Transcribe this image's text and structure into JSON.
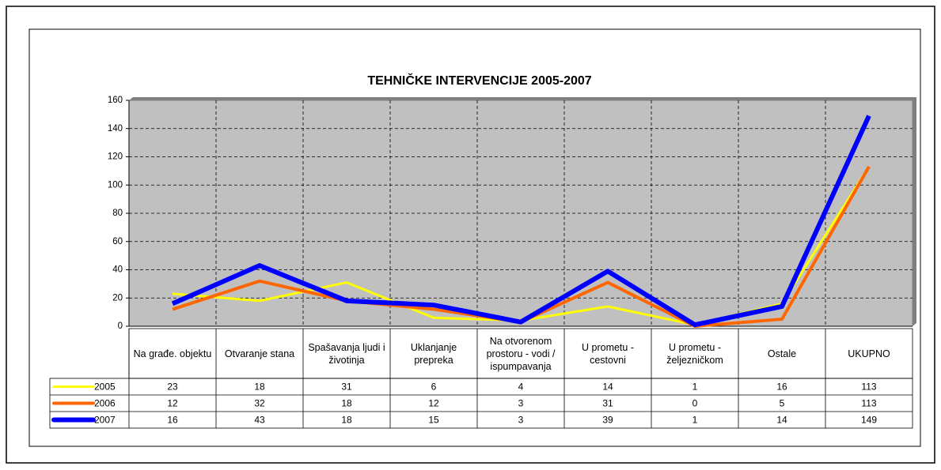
{
  "chart_data": {
    "type": "line",
    "title": "TEHNIČKE INTERVENCIJE 2005-2007",
    "categories": [
      "Na građe. objektu",
      "Otvaranje stana",
      "Spašavanja ljudi i životinja",
      "Uklanjanje prepreka",
      "Na otvorenom prostoru - vodi / ispumpavanja",
      "U prometu - cestovni",
      "U prometu - željezničkom",
      "Ostale",
      "UKUPNO"
    ],
    "series": [
      {
        "name": "2005",
        "color": "#ffff00",
        "values": [
          23,
          18,
          31,
          6,
          4,
          14,
          1,
          16,
          113
        ]
      },
      {
        "name": "2006",
        "color": "#ff6600",
        "values": [
          12,
          32,
          18,
          12,
          3,
          31,
          0,
          5,
          113
        ]
      },
      {
        "name": "2007",
        "color": "#0000ff",
        "values": [
          16,
          43,
          18,
          15,
          3,
          39,
          1,
          14,
          149
        ]
      }
    ],
    "ylim": [
      0,
      160
    ],
    "yticks": [
      0,
      20,
      40,
      60,
      80,
      100,
      120,
      140,
      160
    ],
    "grid": true,
    "data_table": true
  }
}
